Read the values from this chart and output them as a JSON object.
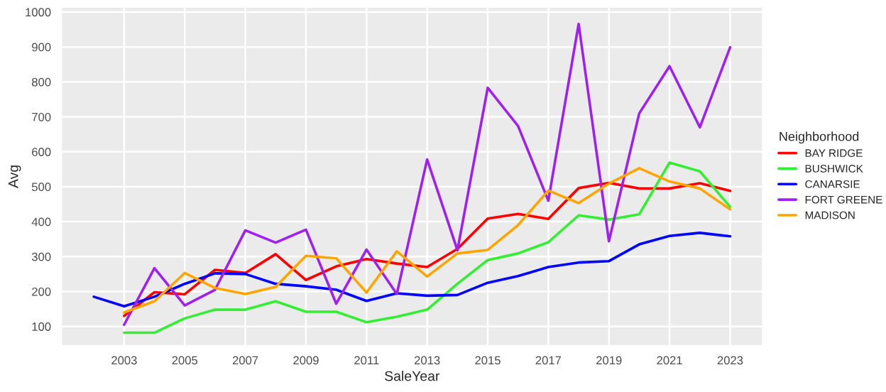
{
  "chart_data": {
    "type": "line",
    "xlabel": "SaleYear",
    "ylabel": "Avg",
    "legend_title": "Neighborhood",
    "x": [
      2002,
      2003,
      2004,
      2005,
      2006,
      2007,
      2008,
      2009,
      2010,
      2011,
      2012,
      2013,
      2014,
      2015,
      2016,
      2017,
      2018,
      2019,
      2020,
      2021,
      2022,
      2023
    ],
    "series": [
      {
        "name": "BAY RIDGE",
        "color": "#ff0000",
        "values": [
          null,
          130,
          198,
          192,
          262,
          253,
          307,
          233,
          272,
          293,
          280,
          270,
          322,
          409,
          422,
          408,
          496,
          511,
          495,
          495,
          510,
          488
        ]
      },
      {
        "name": "BUSHWICK",
        "color": "#33ee33",
        "values": [
          null,
          82,
          82,
          123,
          148,
          148,
          172,
          142,
          142,
          112,
          128,
          148,
          222,
          290,
          309,
          341,
          418,
          406,
          421,
          569,
          544,
          442
        ]
      },
      {
        "name": "CANARSIE",
        "color": "#0000ff",
        "values": [
          185,
          158,
          185,
          222,
          252,
          250,
          222,
          215,
          205,
          173,
          195,
          188,
          190,
          225,
          244,
          270,
          283,
          287,
          335,
          359,
          368,
          358
        ]
      },
      {
        "name": "FORT GREENE",
        "color": "#a020f0",
        "values": [
          null,
          105,
          267,
          160,
          205,
          375,
          340,
          377,
          165,
          320,
          193,
          578,
          318,
          783,
          674,
          460,
          966,
          344,
          710,
          845,
          670,
          899
        ]
      },
      {
        "name": "MADISON",
        "color": "#ffa500",
        "values": [
          null,
          140,
          172,
          253,
          210,
          193,
          213,
          302,
          295,
          197,
          315,
          243,
          309,
          319,
          390,
          489,
          453,
          509,
          553,
          515,
          495,
          435
        ]
      }
    ],
    "xlim": [
      2000.95,
      2024.05
    ],
    "xticks": [
      2003,
      2005,
      2007,
      2009,
      2011,
      2013,
      2015,
      2017,
      2019,
      2021,
      2023
    ],
    "ylim": [
      47,
      1012
    ],
    "yticks": [
      100,
      200,
      300,
      400,
      500,
      600,
      700,
      800,
      900,
      1000
    ],
    "grid": true,
    "legend": "right",
    "marker": "none",
    "line_style": "solid"
  }
}
